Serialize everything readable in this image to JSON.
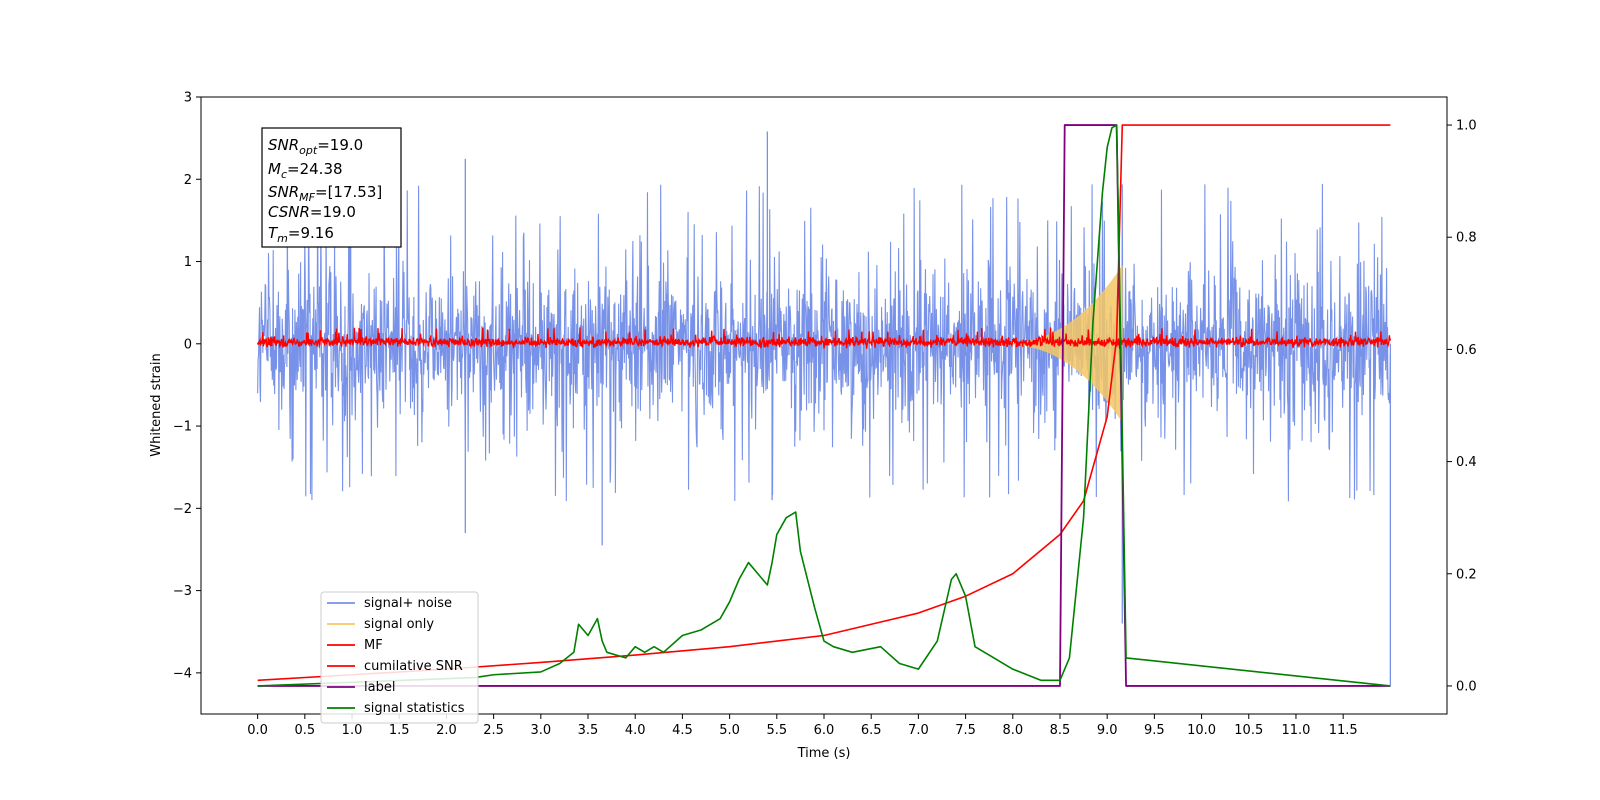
{
  "chart_data": {
    "type": "line",
    "title": "",
    "xlabel": "Time (s)",
    "ylabel": "Whitened strain",
    "xlim": [
      -0.6,
      12.6
    ],
    "ylim": [
      -4.5,
      3
    ],
    "y2lim": [
      -0.05,
      1.05
    ],
    "x_ticks": [
      "0.0",
      "0.5",
      "1.0",
      "1.5",
      "2.0",
      "2.5",
      "3.0",
      "3.5",
      "4.0",
      "4.5",
      "5.0",
      "5.5",
      "6.0",
      "6.5",
      "7.0",
      "7.5",
      "8.0",
      "8.5",
      "9.0",
      "9.5",
      "10.0",
      "10.5",
      "11.0",
      "11.5"
    ],
    "y_ticks": [
      "3",
      "2",
      "1",
      "0",
      "−1",
      "−2",
      "−3",
      "−4"
    ],
    "y2_ticks": [
      "1.0",
      "0.8",
      "0.6",
      "0.4",
      "0.2",
      "0.0"
    ],
    "grid": false,
    "legend_position": "lower-left",
    "annotation": {
      "snr_opt": "=19.0",
      "mc": "=24.38",
      "snr_mf": "=[17.53]",
      "csnr": "=19.0",
      "tm": "=9.16"
    },
    "series": [
      {
        "name": "signal+ noise",
        "color": "#7792e8",
        "axis": "left",
        "kind": "noise",
        "t_range": [
          0.0,
          12.0
        ],
        "envelope": {
          "typical": [
            -1.0,
            1.0
          ],
          "extremes": [
            -2.3,
            2.58
          ]
        },
        "spikes": [
          [
            5.4,
            2.58
          ],
          [
            2.2,
            2.25
          ],
          [
            5.45,
            -1.9
          ],
          [
            2.2,
            -2.3
          ],
          [
            3.65,
            -2.45
          ],
          [
            9.16,
            -3.4
          ],
          [
            12.0,
            -4.15
          ]
        ]
      },
      {
        "name": "signal only",
        "color": "#f5c765",
        "axis": "left",
        "kind": "chirp",
        "t_range": [
          7.8,
          9.16
        ],
        "peak_amplitude": 0.95
      },
      {
        "name": "MF",
        "color": "#ff0000",
        "axis": "left",
        "kind": "noise",
        "t_range": [
          0.0,
          12.0
        ],
        "envelope": {
          "typical": [
            -0.06,
            0.1
          ]
        }
      },
      {
        "name": "cumilative SNR",
        "color": "#ff0000",
        "axis": "right",
        "x": [
          0.0,
          1.0,
          2.0,
          3.0,
          4.0,
          5.0,
          6.0,
          7.0,
          7.5,
          8.0,
          8.5,
          8.75,
          9.0,
          9.1,
          9.16,
          12.0
        ],
        "y": [
          0.01,
          0.02,
          0.03,
          0.042,
          0.055,
          0.07,
          0.09,
          0.13,
          0.16,
          0.2,
          0.27,
          0.33,
          0.48,
          0.62,
          1.0,
          1.0
        ]
      },
      {
        "name": "label",
        "color": "#800080",
        "axis": "right",
        "x": [
          0.0,
          8.5,
          8.55,
          9.1,
          9.2,
          12.0
        ],
        "y": [
          0.0,
          0.0,
          1.0,
          1.0,
          0.0,
          0.0
        ]
      },
      {
        "name": "signal statistics",
        "color": "#008000",
        "axis": "right",
        "x": [
          0.0,
          2.3,
          2.5,
          3.0,
          3.2,
          3.35,
          3.4,
          3.5,
          3.6,
          3.65,
          3.7,
          3.9,
          4.0,
          4.1,
          4.2,
          4.3,
          4.5,
          4.7,
          4.9,
          5.0,
          5.1,
          5.2,
          5.3,
          5.4,
          5.45,
          5.5,
          5.6,
          5.7,
          5.75,
          5.9,
          6.0,
          6.1,
          6.3,
          6.6,
          6.8,
          7.0,
          7.2,
          7.35,
          7.4,
          7.5,
          7.6,
          7.8,
          8.0,
          8.3,
          8.5,
          8.6,
          8.75,
          8.85,
          8.95,
          9.0,
          9.05,
          9.1,
          9.15,
          9.2,
          12.0
        ],
        "y": [
          0.0,
          0.015,
          0.02,
          0.025,
          0.04,
          0.06,
          0.11,
          0.09,
          0.12,
          0.08,
          0.06,
          0.05,
          0.07,
          0.06,
          0.07,
          0.06,
          0.09,
          0.1,
          0.12,
          0.15,
          0.19,
          0.22,
          0.2,
          0.18,
          0.22,
          0.27,
          0.3,
          0.31,
          0.24,
          0.14,
          0.08,
          0.07,
          0.06,
          0.07,
          0.04,
          0.03,
          0.08,
          0.19,
          0.2,
          0.16,
          0.07,
          0.05,
          0.03,
          0.01,
          0.01,
          0.05,
          0.3,
          0.65,
          0.88,
          0.96,
          0.995,
          1.0,
          0.55,
          0.05,
          0.0
        ]
      }
    ]
  }
}
